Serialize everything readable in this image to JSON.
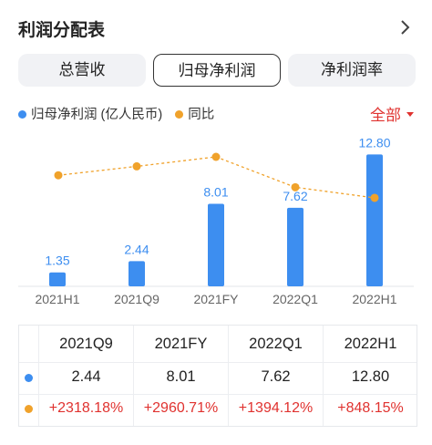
{
  "header": {
    "title": "利润分配表"
  },
  "tabs": [
    {
      "label": "总营收",
      "active": false
    },
    {
      "label": "归母净利润",
      "active": true
    },
    {
      "label": "净利润率",
      "active": false
    }
  ],
  "legend": {
    "bar_label": "归母净利润 (亿人民币)",
    "line_label": "同比"
  },
  "filter": {
    "label": "全部"
  },
  "colors": {
    "bar": "#3d8ef0",
    "line": "#f0a22b",
    "accent": "#e0322f"
  },
  "chart_data": {
    "type": "bar",
    "categories": [
      "2021H1",
      "2021Q9",
      "2021FY",
      "2022Q1",
      "2022H1"
    ],
    "series": [
      {
        "name": "归母净利润 (亿人民币)",
        "values": [
          1.35,
          2.44,
          8.01,
          7.62,
          12.8
        ],
        "labels": [
          "1.35",
          "2.44",
          "8.01",
          "7.62",
          "12.80"
        ]
      },
      {
        "name": "同比",
        "values": [
          null,
          2318.18,
          2960.71,
          1394.12,
          848.15
        ]
      }
    ],
    "title": "",
    "xlabel": "",
    "ylabel": "",
    "ylim": [
      0,
      14
    ]
  },
  "table": {
    "headers": [
      "2021Q9",
      "2021FY",
      "2022Q1",
      "2022H1"
    ],
    "row_values": [
      "2.44",
      "8.01",
      "7.62",
      "12.80"
    ],
    "row_yoy": [
      "+2318.18%",
      "+2960.71%",
      "+1394.12%",
      "+848.15%"
    ]
  }
}
